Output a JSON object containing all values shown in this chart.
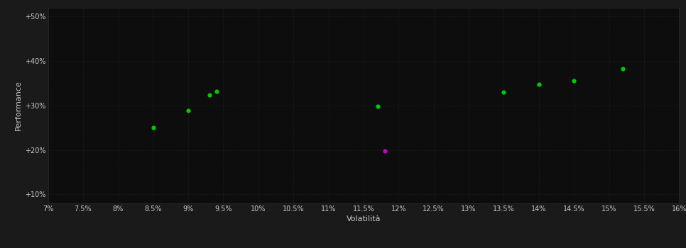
{
  "background_color": "#1a1a1a",
  "plot_bg_color": "#0d0d0d",
  "grid_color": "#2d2d2d",
  "text_color": "#c8c8c8",
  "xlabel": "Volatilità",
  "ylabel": "Performance",
  "xlim": [
    0.07,
    0.16
  ],
  "ylim": [
    0.08,
    0.52
  ],
  "xticks": [
    0.07,
    0.075,
    0.08,
    0.085,
    0.09,
    0.095,
    0.1,
    0.105,
    0.11,
    0.115,
    0.12,
    0.125,
    0.13,
    0.135,
    0.14,
    0.145,
    0.15,
    0.155,
    0.16
  ],
  "xtick_labels": [
    "7%",
    "7.5%",
    "8%",
    "8.5%",
    "9%",
    "9.5%",
    "10%",
    "10.5%",
    "11%",
    "11.5%",
    "12%",
    "12.5%",
    "13%",
    "13.5%",
    "14%",
    "14.5%",
    "15%",
    "15.5%",
    "16%"
  ],
  "yticks": [
    0.1,
    0.2,
    0.3,
    0.4,
    0.5
  ],
  "ytick_labels": [
    "+10%",
    "+20%",
    "+30%",
    "+40%",
    "+50%"
  ],
  "green_points": [
    [
      0.085,
      0.251
    ],
    [
      0.093,
      0.323
    ],
    [
      0.094,
      0.331
    ],
    [
      0.09,
      0.289
    ],
    [
      0.117,
      0.298
    ],
    [
      0.135,
      0.33
    ],
    [
      0.14,
      0.348
    ],
    [
      0.145,
      0.356
    ],
    [
      0.152,
      0.382
    ]
  ],
  "magenta_points": [
    [
      0.118,
      0.198
    ]
  ],
  "green_color": "#00cc00",
  "magenta_color": "#cc00cc",
  "dot_size": 12,
  "grid_linewidth": 0.4,
  "grid_linestyle": ":"
}
